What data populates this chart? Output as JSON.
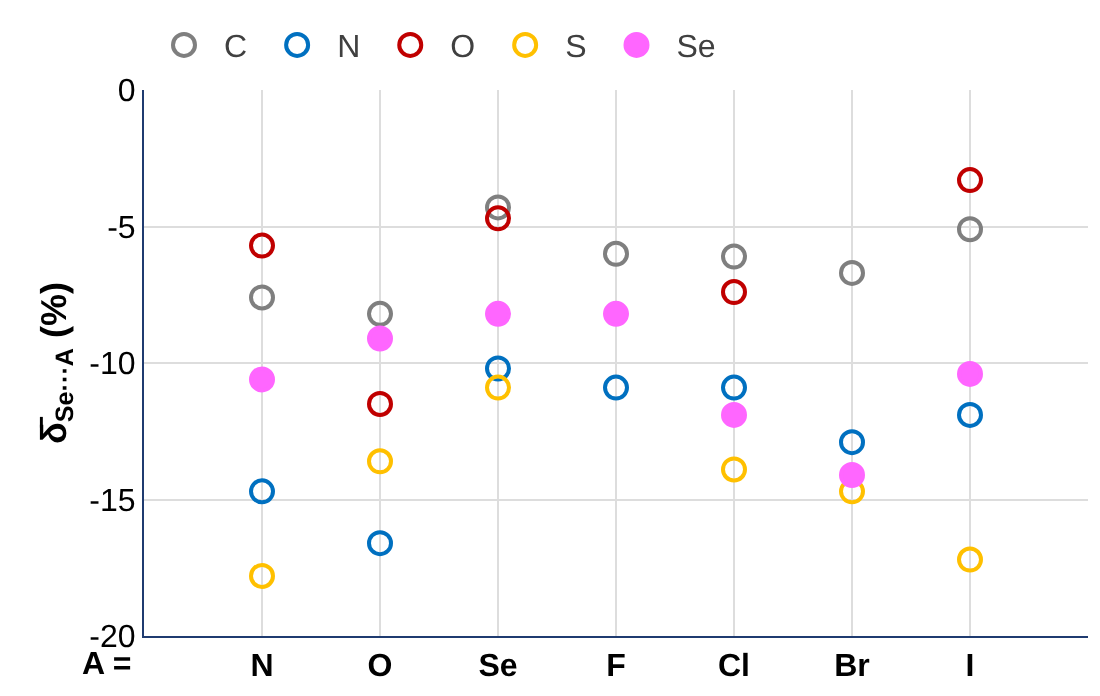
{
  "chart_data": {
    "type": "scatter",
    "ylabel": "δ̄$_{Se···A}$ (%)",
    "xlabel": "A =",
    "categories": [
      "N",
      "O",
      "Se",
      "F",
      "Cl",
      "Br",
      "I"
    ],
    "series": [
      {
        "name": "C",
        "color": "#7f7f7f",
        "values": [
          -7.6,
          -8.2,
          -4.3,
          -6.0,
          -6.1,
          -6.7,
          -5.1
        ]
      },
      {
        "name": "N",
        "color": "#0070c0",
        "values": [
          -14.7,
          -16.6,
          -10.2,
          -10.9,
          -10.9,
          -12.9,
          -11.9
        ]
      },
      {
        "name": "O",
        "color": "#c00000",
        "values": [
          -5.7,
          -11.5,
          -4.7,
          null,
          -7.4,
          null,
          -3.3
        ]
      },
      {
        "name": "S",
        "color": "#ffc000",
        "values": [
          -17.8,
          -13.6,
          -10.9,
          null,
          -13.9,
          -14.7,
          -17.2
        ]
      },
      {
        "name": "Se",
        "color": "#ff66ff",
        "marker": "circle",
        "values": [
          -10.6,
          -9.1,
          -8.2,
          -8.2,
          -11.9,
          -14.1,
          -10.4
        ]
      }
    ],
    "ylim": [
      -20,
      0
    ],
    "yticks": [
      -20,
      -15,
      -10,
      -5,
      0
    ],
    "grid": true,
    "legend": "top left"
  }
}
